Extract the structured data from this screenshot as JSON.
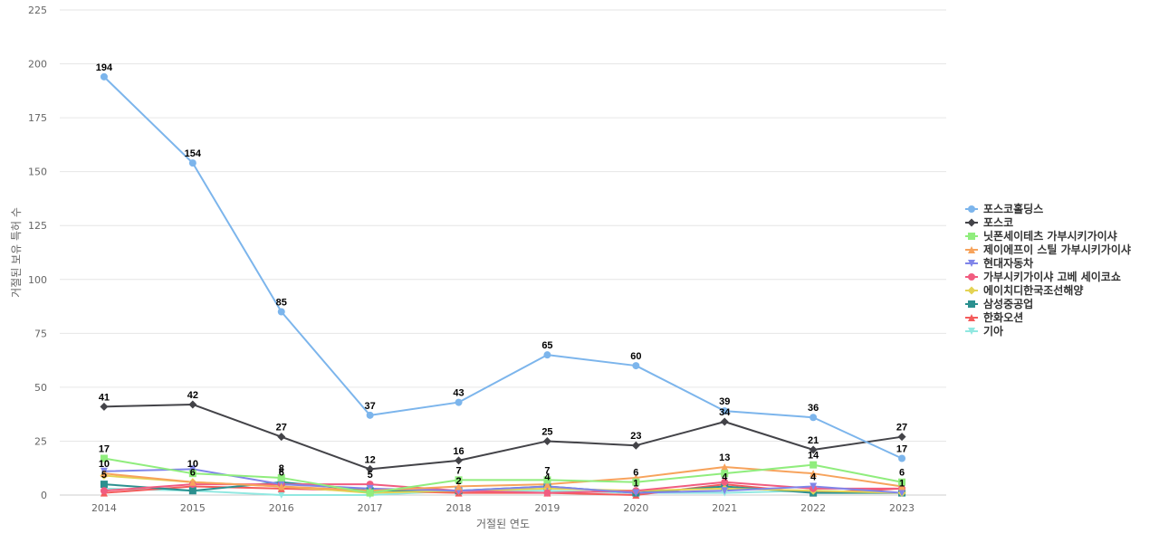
{
  "chart_data": {
    "type": "line",
    "title": "",
    "xlabel": "거절된 연도",
    "ylabel": "거절된 보유 특허 수",
    "ylim": [
      0,
      225
    ],
    "yticks": [
      0,
      25,
      50,
      75,
      100,
      125,
      150,
      175,
      200,
      225
    ],
    "grid": true,
    "legend_position": "right",
    "categories": [
      "2014",
      "2015",
      "2016",
      "2017",
      "2018",
      "2019",
      "2020",
      "2021",
      "2022",
      "2023"
    ],
    "series": [
      {
        "name": "포스코홀딩스",
        "color": "#7cb5ec",
        "marker": "circle",
        "values": [
          194,
          154,
          85,
          37,
          43,
          65,
          60,
          39,
          36,
          17
        ],
        "labels": [
          true,
          true,
          true,
          true,
          true,
          true,
          true,
          true,
          true,
          true
        ]
      },
      {
        "name": "포스코",
        "color": "#434348",
        "marker": "diamond",
        "values": [
          41,
          42,
          27,
          12,
          16,
          25,
          23,
          34,
          21,
          27
        ],
        "labels": [
          true,
          true,
          true,
          true,
          true,
          true,
          true,
          true,
          true,
          true
        ]
      },
      {
        "name": "닛폰세이테츠 가부시키가이샤",
        "color": "#90ed7d",
        "marker": "square",
        "values": [
          17,
          10,
          8,
          1,
          7,
          7,
          6,
          10,
          14,
          6
        ],
        "labels": [
          true,
          true,
          true,
          false,
          true,
          true,
          true,
          false,
          true,
          true
        ]
      },
      {
        "name": "제이에프이 스틸 가부시키가이샤",
        "color": "#f7a35c",
        "marker": "triangle",
        "values": [
          10,
          6,
          4,
          2,
          4,
          5,
          8,
          13,
          10,
          4
        ],
        "labels": [
          true,
          false,
          false,
          false,
          false,
          false,
          false,
          true,
          false,
          false
        ]
      },
      {
        "name": "현대자동차",
        "color": "#8085e9",
        "marker": "triangle-down",
        "values": [
          11,
          12,
          5,
          3,
          2,
          4,
          1,
          2,
          4,
          1
        ],
        "labels": [
          false,
          false,
          false,
          false,
          false,
          false,
          false,
          false,
          true,
          false
        ]
      },
      {
        "name": "가부시키가이샤 고베 세이코쇼",
        "color": "#f15c80",
        "marker": "circle",
        "values": [
          2,
          5,
          5,
          5,
          2,
          1,
          2,
          6,
          3,
          3
        ],
        "labels": [
          false,
          false,
          false,
          true,
          false,
          false,
          false,
          false,
          false,
          false
        ]
      },
      {
        "name": "에이치디한국조선해양",
        "color": "#e4d354",
        "marker": "diamond",
        "values": [
          9,
          6,
          4,
          1,
          2,
          3,
          2,
          3,
          2,
          1
        ],
        "labels": [
          false,
          true,
          false,
          false,
          false,
          false,
          false,
          false,
          false,
          false
        ]
      },
      {
        "name": "삼성중공업",
        "color": "#2b908f",
        "marker": "square",
        "values": [
          5,
          2,
          6,
          2,
          2,
          4,
          1,
          4,
          1,
          1
        ],
        "labels": [
          true,
          false,
          true,
          false,
          true,
          true,
          true,
          true,
          false,
          true
        ]
      },
      {
        "name": "한화오션",
        "color": "#f45b5b",
        "marker": "triangle",
        "values": [
          1,
          4,
          3,
          2,
          1,
          1,
          0,
          5,
          1,
          3
        ],
        "labels": [
          false,
          false,
          false,
          false,
          false,
          false,
          false,
          false,
          false,
          false
        ]
      },
      {
        "name": "기아",
        "color": "#91e8e1",
        "marker": "triangle-down",
        "values": [
          3,
          2,
          0,
          0,
          2,
          2,
          1,
          1,
          2,
          1
        ],
        "labels": [
          false,
          false,
          false,
          false,
          false,
          false,
          false,
          false,
          false,
          false
        ]
      }
    ]
  }
}
